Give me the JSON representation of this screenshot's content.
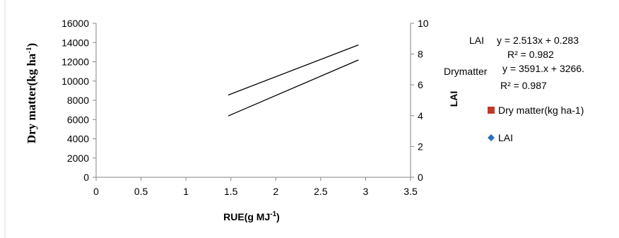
{
  "chart_data": {
    "type": "line",
    "title": "",
    "xlabel": "RUE(g MJ-1)",
    "ylabel": "Dry matter(kg ha-1)",
    "y2label": "LAI",
    "xlim": [
      0,
      3.5
    ],
    "ylim": [
      0,
      16000
    ],
    "y2lim": [
      0,
      10
    ],
    "x_ticks": [
      "0",
      "0.5",
      "1",
      "1.5",
      "2",
      "2.5",
      "3",
      "3.5"
    ],
    "y_ticks": [
      "0",
      "2000",
      "4000",
      "6000",
      "8000",
      "10000",
      "12000",
      "14000",
      "16000"
    ],
    "y2_ticks": [
      "0",
      "2",
      "4",
      "6",
      "8",
      "10"
    ],
    "grid": false,
    "legend_position": "right",
    "series": [
      {
        "name": "Dry matter(kg ha-1)",
        "axis": "left",
        "marker": "square",
        "color": "#c0392b",
        "x": [
          1.47,
          2.92
        ],
        "y": [
          8546,
          13754
        ]
      },
      {
        "name": "LAI",
        "axis": "right",
        "marker": "diamond",
        "color": "#2e6fbd",
        "x": [
          1.47,
          2.92
        ],
        "y": [
          3.98,
          7.62
        ]
      }
    ],
    "annotations": [
      {
        "label": "LAI",
        "equation": "y = 2.513x + 0.283",
        "r2": "R² = 0.982"
      },
      {
        "label": "Drymatter",
        "equation": "y = 3591.x + 3266.",
        "r2": "R² = 0.987"
      }
    ]
  }
}
